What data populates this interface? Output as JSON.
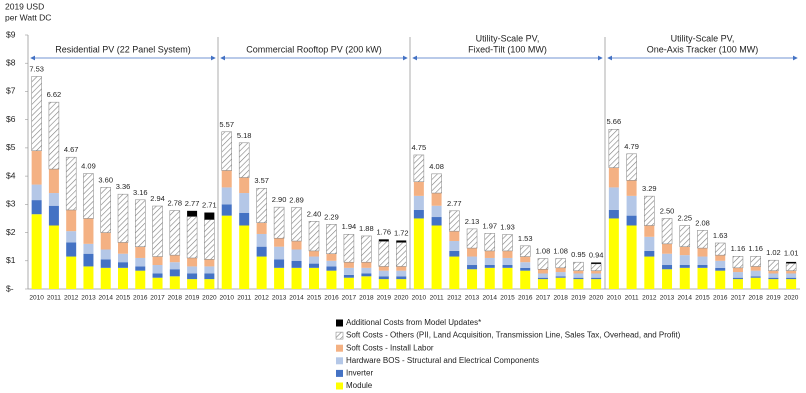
{
  "chart_data": {
    "type": "stacked_bar",
    "ylabel": [
      "2019 USD",
      "per Watt DC"
    ],
    "ylim": [
      0,
      9
    ],
    "yticks": [
      {
        "value": 0,
        "label": "$-"
      },
      {
        "value": 1,
        "label": "$1"
      },
      {
        "value": 2,
        "label": "$2"
      },
      {
        "value": 3,
        "label": "$3"
      },
      {
        "value": 4,
        "label": "$4"
      },
      {
        "value": 5,
        "label": "$5"
      },
      {
        "value": 6,
        "label": "$6"
      },
      {
        "value": 7,
        "label": "$7"
      },
      {
        "value": 8,
        "label": "$8"
      },
      {
        "value": 9,
        "label": "$9"
      }
    ],
    "series": [
      {
        "name": "Module",
        "color": "#ffff00"
      },
      {
        "name": "Inverter",
        "color": "#4472c4"
      },
      {
        "name": "Hardware BOS - Structural and Electrical Components",
        "color": "#b4c7e7"
      },
      {
        "name": "Soft Costs - Install Labor",
        "color": "#f4b183"
      },
      {
        "name": "Soft Costs - Others (PII, Land Acquisition, Transmission Line, Sales Tax, Overhead, and Profit)",
        "color": "#7f7f7f",
        "hatch": true
      },
      {
        "name": "Additional Costs from Model Updates*",
        "color": "#000000"
      }
    ],
    "panels": [
      {
        "title": [
          "Residential PV (22 Panel System)"
        ],
        "categories": [
          "2010",
          "2011",
          "2012",
          "2013",
          "2014",
          "2015",
          "2016",
          "2017",
          "2018",
          "2019",
          "2020"
        ],
        "values": [
          [
            2.65,
            2.25,
            1.15,
            0.8,
            0.75,
            0.75,
            0.65,
            0.4,
            0.45,
            0.35,
            0.35
          ],
          [
            0.5,
            0.7,
            0.5,
            0.45,
            0.3,
            0.2,
            0.15,
            0.15,
            0.25,
            0.2,
            0.2
          ],
          [
            0.55,
            0.45,
            0.4,
            0.35,
            0.35,
            0.3,
            0.3,
            0.3,
            0.25,
            0.25,
            0.25
          ],
          [
            1.2,
            0.85,
            0.75,
            0.9,
            0.6,
            0.4,
            0.4,
            0.3,
            0.25,
            0.3,
            0.25
          ],
          [
            2.63,
            2.37,
            1.87,
            1.59,
            1.6,
            1.71,
            1.66,
            1.79,
            1.58,
            1.47,
            1.41
          ],
          [
            0,
            0,
            0,
            0,
            0,
            0,
            0,
            0,
            0,
            0.2,
            0.25
          ]
        ],
        "totals": [
          7.53,
          6.62,
          4.67,
          4.09,
          3.6,
          3.36,
          3.16,
          2.94,
          2.78,
          2.77,
          2.71
        ],
        "total_labels": [
          "7.53",
          "6.62",
          "4.67",
          "4.09",
          "3.60",
          "3.36",
          "3.16",
          "2.94",
          "2.78",
          "2.77",
          "2.71"
        ]
      },
      {
        "title": [
          "Commercial Rooftop PV (200 kW)"
        ],
        "categories": [
          "2010",
          "2011",
          "2012",
          "2013",
          "2014",
          "2015",
          "2016",
          "2017",
          "2018",
          "2019",
          "2020"
        ],
        "values": [
          [
            2.6,
            2.25,
            1.15,
            0.75,
            0.75,
            0.75,
            0.65,
            0.4,
            0.45,
            0.35,
            0.35
          ],
          [
            0.4,
            0.45,
            0.35,
            0.3,
            0.25,
            0.15,
            0.15,
            0.1,
            0.1,
            0.1,
            0.1
          ],
          [
            0.6,
            0.7,
            0.45,
            0.45,
            0.4,
            0.25,
            0.2,
            0.25,
            0.2,
            0.2,
            0.2
          ],
          [
            0.6,
            0.55,
            0.4,
            0.3,
            0.3,
            0.2,
            0.25,
            0.2,
            0.2,
            0.15,
            0.15
          ],
          [
            1.37,
            1.23,
            1.22,
            1.1,
            1.19,
            1.05,
            1.04,
            0.99,
            0.93,
            0.89,
            0.85
          ],
          [
            0,
            0,
            0,
            0,
            0,
            0,
            0,
            0,
            0,
            0.07,
            0.07
          ]
        ],
        "totals": [
          5.57,
          5.18,
          3.57,
          2.9,
          2.89,
          2.4,
          2.29,
          1.94,
          1.88,
          1.76,
          1.72
        ],
        "total_labels": [
          "5.57",
          "5.18",
          "3.57",
          "2.90",
          "2.89",
          "2.40",
          "2.29",
          "1.94",
          "1.88",
          "1.76",
          "1.72"
        ]
      },
      {
        "title": [
          "Utility-Scale PV,",
          "Fixed-Tilt (100 MW)"
        ],
        "categories": [
          "2010",
          "2011",
          "2012",
          "2013",
          "2014",
          "2015",
          "2016",
          "2017",
          "2018",
          "2019",
          "2020"
        ],
        "values": [
          [
            2.5,
            2.25,
            1.15,
            0.7,
            0.75,
            0.75,
            0.65,
            0.35,
            0.4,
            0.35,
            0.35
          ],
          [
            0.3,
            0.3,
            0.2,
            0.15,
            0.1,
            0.1,
            0.1,
            0.05,
            0.05,
            0.05,
            0.05
          ],
          [
            0.5,
            0.4,
            0.35,
            0.3,
            0.25,
            0.25,
            0.2,
            0.15,
            0.15,
            0.15,
            0.15
          ],
          [
            0.5,
            0.45,
            0.35,
            0.3,
            0.25,
            0.25,
            0.2,
            0.15,
            0.15,
            0.1,
            0.1
          ],
          [
            0.95,
            0.68,
            0.72,
            0.68,
            0.62,
            0.58,
            0.38,
            0.38,
            0.33,
            0.3,
            0.24
          ],
          [
            0,
            0,
            0,
            0,
            0,
            0,
            0,
            0,
            0,
            0,
            0.05
          ]
        ],
        "totals": [
          4.75,
          4.08,
          2.77,
          2.13,
          1.97,
          1.93,
          1.53,
          1.08,
          1.08,
          0.95,
          0.94
        ],
        "total_labels": [
          "4.75",
          "4.08",
          "2.77",
          "2.13",
          "1.97",
          "1.93",
          "1.53",
          "1.08",
          "1.08",
          "0.95",
          "0.94"
        ]
      },
      {
        "title": [
          "Utility-Scale PV,",
          "One-Axis Tracker (100 MW)"
        ],
        "categories": [
          "2010",
          "2011",
          "2012",
          "2013",
          "2014",
          "2015",
          "2016",
          "2017",
          "2018",
          "2019",
          "2020"
        ],
        "values": [
          [
            2.5,
            2.25,
            1.15,
            0.7,
            0.75,
            0.75,
            0.65,
            0.35,
            0.4,
            0.35,
            0.35
          ],
          [
            0.3,
            0.35,
            0.2,
            0.15,
            0.1,
            0.1,
            0.1,
            0.05,
            0.05,
            0.05,
            0.05
          ],
          [
            0.8,
            0.7,
            0.5,
            0.4,
            0.35,
            0.3,
            0.25,
            0.2,
            0.2,
            0.15,
            0.15
          ],
          [
            0.7,
            0.55,
            0.4,
            0.35,
            0.3,
            0.3,
            0.2,
            0.15,
            0.15,
            0.1,
            0.1
          ],
          [
            1.36,
            0.94,
            1.04,
            0.9,
            0.75,
            0.63,
            0.43,
            0.41,
            0.36,
            0.37,
            0.26
          ],
          [
            0,
            0,
            0,
            0,
            0,
            0,
            0,
            0,
            0,
            0,
            0.05
          ]
        ],
        "totals": [
          5.66,
          4.79,
          3.29,
          2.5,
          2.25,
          2.08,
          1.63,
          1.16,
          1.16,
          1.02,
          1.01
        ],
        "total_labels": [
          "5.66",
          "4.79",
          "3.29",
          "2.50",
          "2.25",
          "2.08",
          "1.63",
          "1.16",
          "1.16",
          "1.02",
          "1.01"
        ]
      }
    ]
  }
}
